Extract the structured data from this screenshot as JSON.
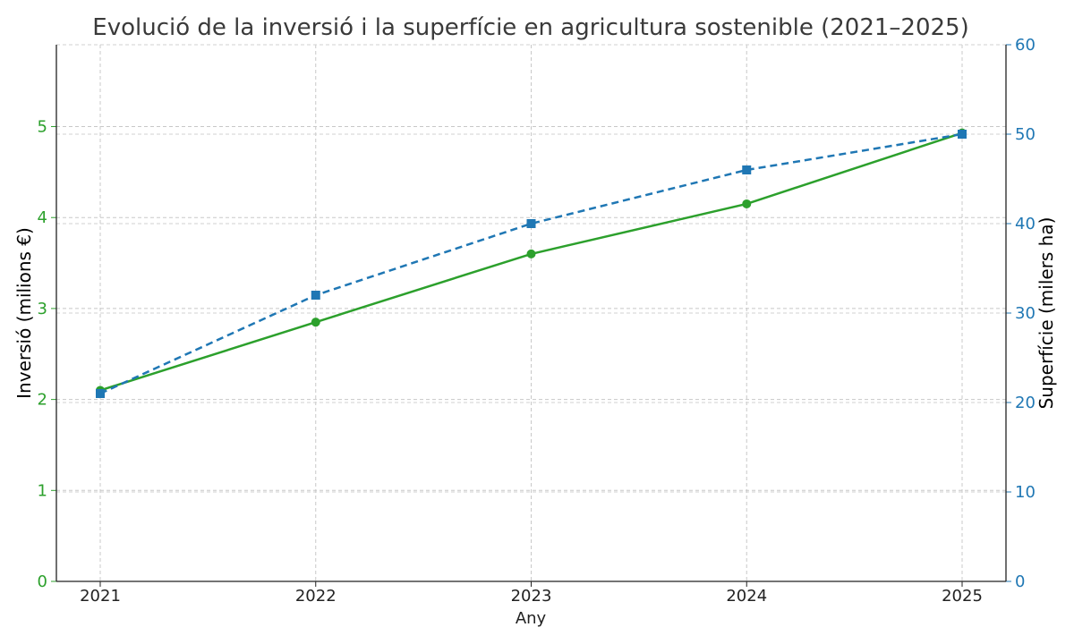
{
  "chart_data": {
    "type": "line",
    "title": "Evolució de la inversió i la superfície en agricultura sostenible (2021–2025)",
    "xlabel": "Any",
    "categories": [
      "2021",
      "2022",
      "2023",
      "2024",
      "2025"
    ],
    "y_left": {
      "label": "Inversió (milions €)",
      "ylim": [
        0,
        5.9
      ],
      "ticks": [
        "0",
        "1",
        "2",
        "3",
        "4",
        "5"
      ],
      "color": "#2ca02c"
    },
    "y_right": {
      "label": "Superfície (milers ha)",
      "ylim": [
        0,
        60
      ],
      "ticks": [
        "0",
        "10",
        "20",
        "30",
        "40",
        "50",
        "60"
      ],
      "color": "#1f77b4"
    },
    "series": [
      {
        "axis": "left",
        "values": [
          2.1,
          2.85,
          3.6,
          4.15,
          4.93
        ],
        "color": "#2ca02c",
        "line_style": "solid",
        "marker": "circle"
      },
      {
        "axis": "right",
        "values": [
          21,
          32,
          40,
          46,
          50
        ],
        "color": "#1f77b4",
        "line_style": "dashed",
        "marker": "square"
      }
    ],
    "grid": true,
    "legend": "none"
  }
}
